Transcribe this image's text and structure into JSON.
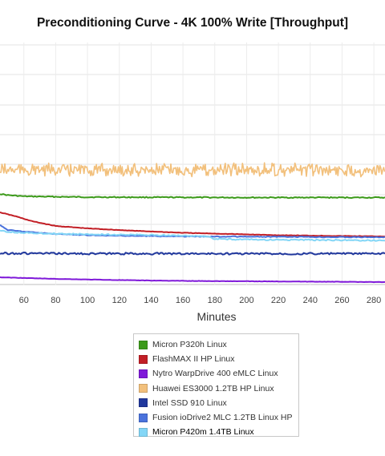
{
  "chart_data": {
    "type": "line",
    "title": "Preconditioning Curve - 4K 100% Write [Throughput]",
    "xlabel": "Minutes",
    "ylabel": "",
    "x_ticks": [
      60,
      80,
      100,
      120,
      140,
      160,
      180,
      200,
      220,
      240,
      260,
      280
    ],
    "xlim": [
      45,
      287
    ],
    "grid": true,
    "legend_position": "bottom",
    "series": [
      {
        "name": "Micron P320h Linux",
        "color": "#3c9a1a",
        "kind": "flat",
        "points": [
          [
            45,
            242
          ],
          [
            50,
            243.5
          ],
          [
            60,
            245
          ],
          [
            100,
            246
          ],
          [
            200,
            246.5
          ],
          [
            287,
            246.5
          ]
        ],
        "noise": 0.6
      },
      {
        "name": "FlashMAX II HP Linux",
        "color": "#c21f26",
        "kind": "decay",
        "points": [
          [
            45,
            265
          ],
          [
            55,
            270
          ],
          [
            65,
            276
          ],
          [
            80,
            282
          ],
          [
            100,
            285
          ],
          [
            130,
            288
          ],
          [
            160,
            290.5
          ],
          [
            190,
            292
          ],
          [
            220,
            293.5
          ],
          [
            260,
            294.5
          ],
          [
            287,
            295
          ]
        ],
        "noise": 0.3
      },
      {
        "name": "Nytro WarpDrive 400 eMLC Linux",
        "color": "#7f19d9",
        "kind": "decay",
        "points": [
          [
            45,
            346
          ],
          [
            80,
            348
          ],
          [
            120,
            349.5
          ],
          [
            160,
            350.5
          ],
          [
            200,
            351
          ],
          [
            250,
            351.5
          ],
          [
            287,
            352
          ]
        ],
        "noise": 0.2
      },
      {
        "name": "Huawei ES3000 1.2TB HP Linux",
        "color": "#f2c07c",
        "kind": "noisy",
        "points": [
          [
            45,
            212
          ],
          [
            287,
            212
          ]
        ],
        "noise": 7
      },
      {
        "name": "Intel SSD 910 Linux",
        "color": "#21389d",
        "kind": "flat",
        "points": [
          [
            45,
            316
          ],
          [
            100,
            316.5
          ],
          [
            287,
            316.5
          ]
        ],
        "noise": 1.2
      },
      {
        "name": "Fusion ioDrive2 MLC 1.2TB Linux HP",
        "color": "#4a72dc",
        "kind": "decay",
        "points": [
          [
            45,
            281
          ],
          [
            50,
            287
          ],
          [
            60,
            289
          ],
          [
            80,
            292
          ],
          [
            110,
            294
          ],
          [
            160,
            295
          ],
          [
            220,
            295.5
          ],
          [
            287,
            296
          ]
        ],
        "noise": 0.5
      },
      {
        "name": "Micron P420m 1.4TB Linux",
        "color": "#83d6f6",
        "kind": "decay",
        "points": [
          [
            45,
            288
          ],
          [
            55,
            290
          ],
          [
            70,
            291
          ],
          [
            100,
            292.5
          ],
          [
            150,
            293.5
          ],
          [
            175,
            295
          ],
          [
            180,
            298
          ],
          [
            200,
            299
          ],
          [
            240,
            299.5
          ],
          [
            287,
            300
          ]
        ],
        "noise": 0.8
      }
    ]
  }
}
